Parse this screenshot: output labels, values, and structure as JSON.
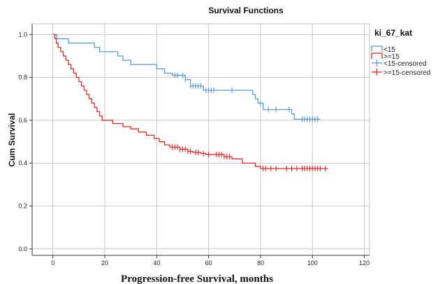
{
  "chart_data": {
    "type": "line",
    "title": "Survival Functions",
    "xlabel": "Progression-free Survival, months",
    "ylabel": "Cum Survival",
    "xlim": [
      -8,
      122
    ],
    "ylim": [
      -0.03,
      1.05
    ],
    "x_ticks": [
      "0",
      "20",
      "40",
      "60",
      "80",
      "100",
      "120"
    ],
    "y_ticks": [
      "0.0",
      "0.2",
      "0.4",
      "0.6",
      "0.8",
      "1.0"
    ],
    "grid": true,
    "legend_position": "right",
    "legend_title": "ki_67_kat",
    "legend_labels": [
      "<15",
      ">=15",
      "<15-censored",
      ">=15-censored"
    ],
    "colors": {
      "low": "#5b9bd5",
      "high": "#e8262a",
      "grid": "#c8c8c8",
      "axis": "#333333"
    },
    "series": [
      {
        "name": "<15",
        "steps": [
          [
            0,
            1.0
          ],
          [
            1.5,
            0.98
          ],
          [
            6,
            0.96
          ],
          [
            16,
            0.94
          ],
          [
            18,
            0.92
          ],
          [
            25,
            0.9
          ],
          [
            27,
            0.88
          ],
          [
            30,
            0.86
          ],
          [
            40,
            0.84
          ],
          [
            43,
            0.82
          ],
          [
            46,
            0.81
          ],
          [
            51,
            0.79
          ],
          [
            53,
            0.76
          ],
          [
            58,
            0.74
          ],
          [
            77,
            0.72
          ],
          [
            78,
            0.7
          ],
          [
            79,
            0.68
          ],
          [
            81,
            0.65
          ],
          [
            92,
            0.63
          ],
          [
            93,
            0.605
          ]
        ],
        "end": 103,
        "censored": [
          47,
          48,
          50,
          51,
          53,
          54,
          55,
          56,
          57,
          59,
          60,
          61,
          62,
          69,
          80,
          83,
          86,
          91,
          96,
          97,
          98,
          99,
          100,
          101,
          102
        ]
      },
      {
        "name": ">=15",
        "steps": [
          [
            0,
            1.0
          ],
          [
            0.8,
            0.98
          ],
          [
            1.3,
            0.96
          ],
          [
            2,
            0.94
          ],
          [
            3,
            0.92
          ],
          [
            4,
            0.9
          ],
          [
            5,
            0.88
          ],
          [
            6,
            0.86
          ],
          [
            7,
            0.84
          ],
          [
            8,
            0.82
          ],
          [
            9,
            0.8
          ],
          [
            10,
            0.78
          ],
          [
            11,
            0.76
          ],
          [
            12,
            0.74
          ],
          [
            13,
            0.72
          ],
          [
            14,
            0.7
          ],
          [
            15,
            0.68
          ],
          [
            16,
            0.66
          ],
          [
            17,
            0.64
          ],
          [
            18,
            0.62
          ],
          [
            19,
            0.6
          ],
          [
            23,
            0.585
          ],
          [
            27,
            0.57
          ],
          [
            30,
            0.56
          ],
          [
            33,
            0.545
          ],
          [
            36,
            0.53
          ],
          [
            39,
            0.515
          ],
          [
            41,
            0.5
          ],
          [
            43,
            0.485
          ],
          [
            45,
            0.475
          ],
          [
            49,
            0.465
          ],
          [
            52,
            0.455
          ],
          [
            54,
            0.45
          ],
          [
            57,
            0.445
          ],
          [
            59,
            0.44
          ],
          [
            66,
            0.43
          ],
          [
            69,
            0.42
          ],
          [
            73,
            0.4
          ],
          [
            78,
            0.385
          ],
          [
            80,
            0.375
          ]
        ],
        "end": 106,
        "censored": [
          46,
          47,
          48,
          49,
          50,
          51,
          52,
          53,
          55,
          56,
          58,
          60,
          63,
          64,
          65,
          66,
          67,
          68,
          81,
          82,
          84,
          86,
          90,
          92,
          94,
          96,
          97,
          98,
          99,
          100,
          101,
          102,
          103,
          105
        ]
      }
    ]
  }
}
